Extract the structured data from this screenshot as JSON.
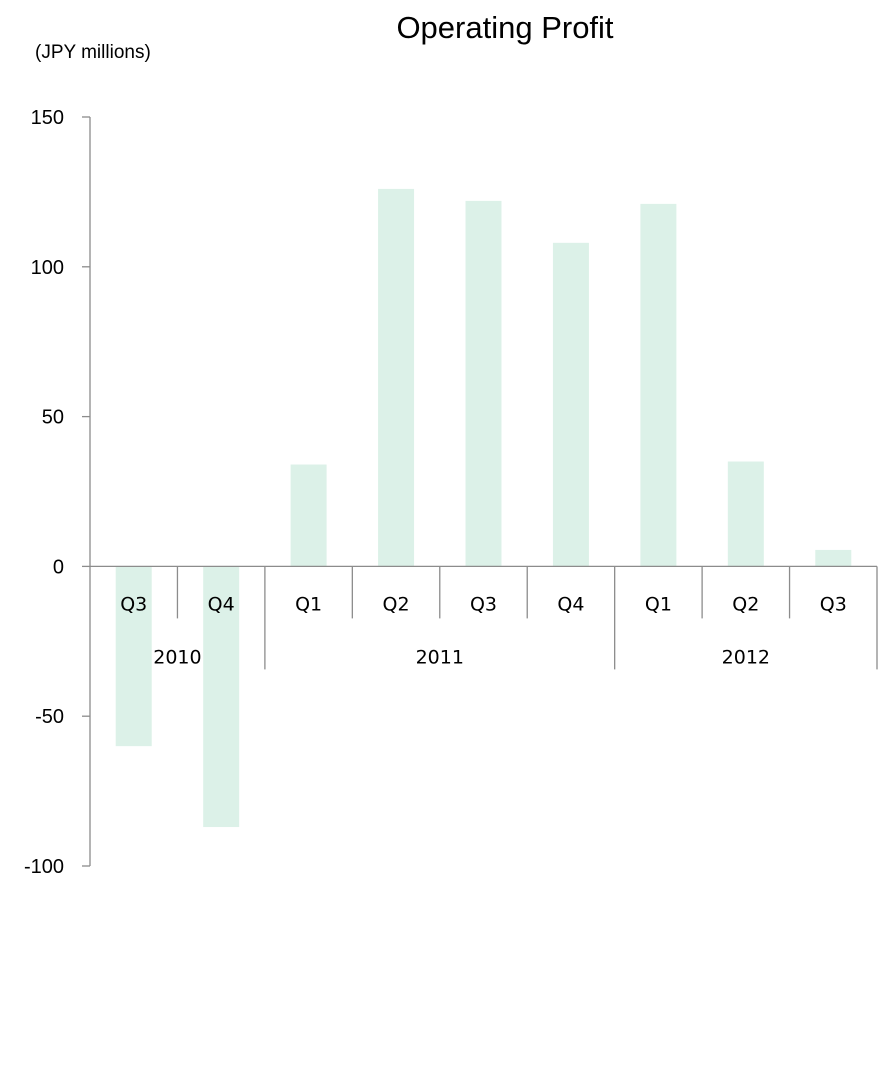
{
  "chart_data": {
    "type": "bar",
    "title": "Operating Profit",
    "unit_label": "(JPY millions)",
    "ylim": [
      -100,
      150
    ],
    "yticks": [
      150,
      100,
      50,
      0,
      -50,
      -100
    ],
    "ytick_labels": [
      "150",
      "100",
      "50",
      "0",
      "-50",
      "-100"
    ],
    "grid": false,
    "categories": [
      "Q3",
      "Q4",
      "Q1",
      "Q2",
      "Q3",
      "Q4",
      "Q1",
      "Q2",
      "Q3"
    ],
    "years": [
      {
        "label": "2010",
        "start": 0,
        "count": 2
      },
      {
        "label": "2011",
        "start": 2,
        "count": 4
      },
      {
        "label": "2012",
        "start": 6,
        "count": 3
      }
    ],
    "series": [
      {
        "values": [
          -60,
          -87,
          34,
          126,
          122,
          108,
          121,
          35,
          5.5
        ]
      }
    ],
    "bar_color": "#dcf1e8"
  }
}
